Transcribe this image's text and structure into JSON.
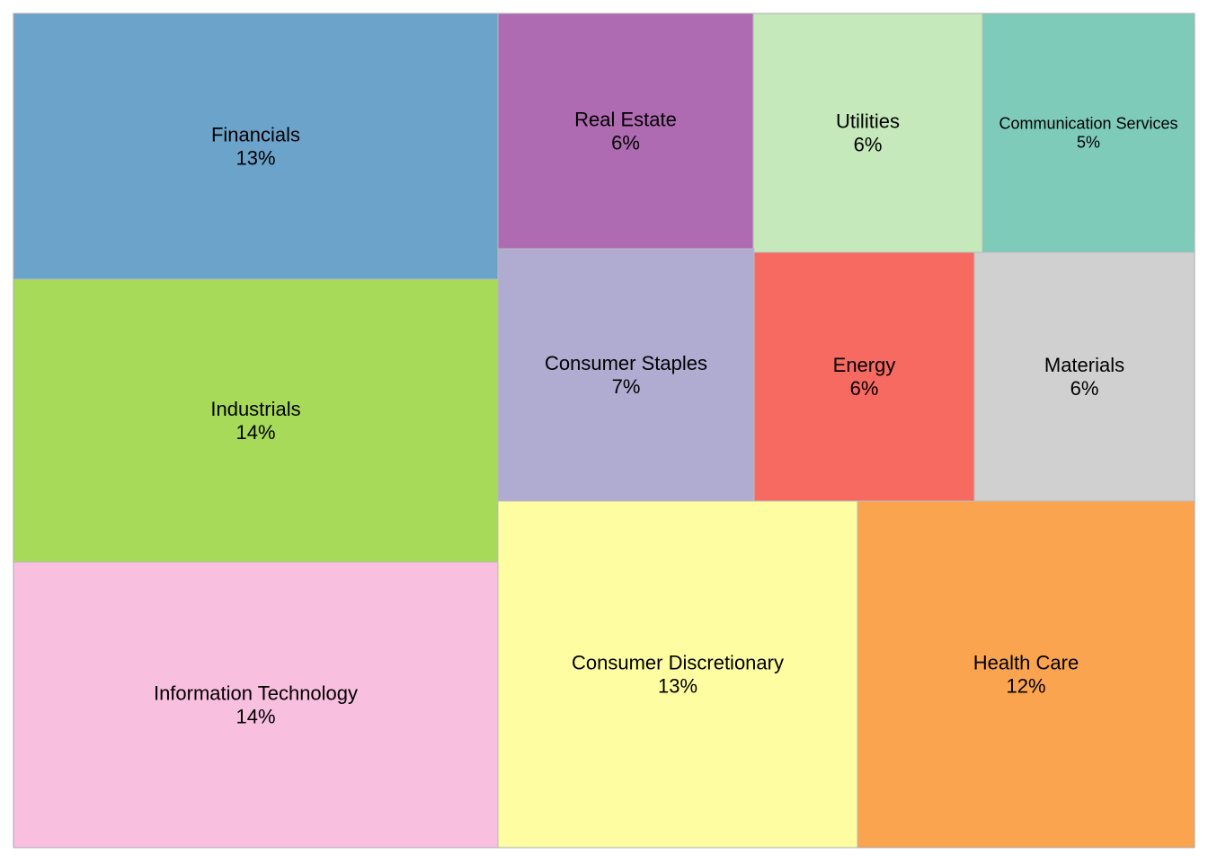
{
  "chart_data": {
    "type": "treemap",
    "title": "",
    "tiles": [
      {
        "label": "Financials",
        "value_label": "13%",
        "value": 13,
        "color": "#6BA3CA"
      },
      {
        "label": "Industrials",
        "value_label": "14%",
        "value": 14,
        "color": "#A6DA58"
      },
      {
        "label": "Information Technology",
        "value_label": "14%",
        "value": 14,
        "color": "#F9BFDF"
      },
      {
        "label": "Real Estate",
        "value_label": "6%",
        "value": 6,
        "color": "#AF6BB1"
      },
      {
        "label": "Utilities",
        "value_label": "6%",
        "value": 6,
        "color": "#C5E9BA"
      },
      {
        "label": "Communication Services",
        "value_label": "5%",
        "value": 5,
        "color": "#7ECBBA"
      },
      {
        "label": "Consumer Staples",
        "value_label": "7%",
        "value": 7,
        "color": "#B0ABD1"
      },
      {
        "label": "Energy",
        "value_label": "6%",
        "value": 6,
        "color": "#F76A61"
      },
      {
        "label": "Materials",
        "value_label": "6%",
        "value": 6,
        "color": "#D0D0D0"
      },
      {
        "label": "Consumer Discretionary",
        "value_label": "13%",
        "value": 13,
        "color": "#FEFDA2"
      },
      {
        "label": "Health Care",
        "value_label": "12%",
        "value": 12,
        "color": "#FAA450"
      }
    ]
  }
}
